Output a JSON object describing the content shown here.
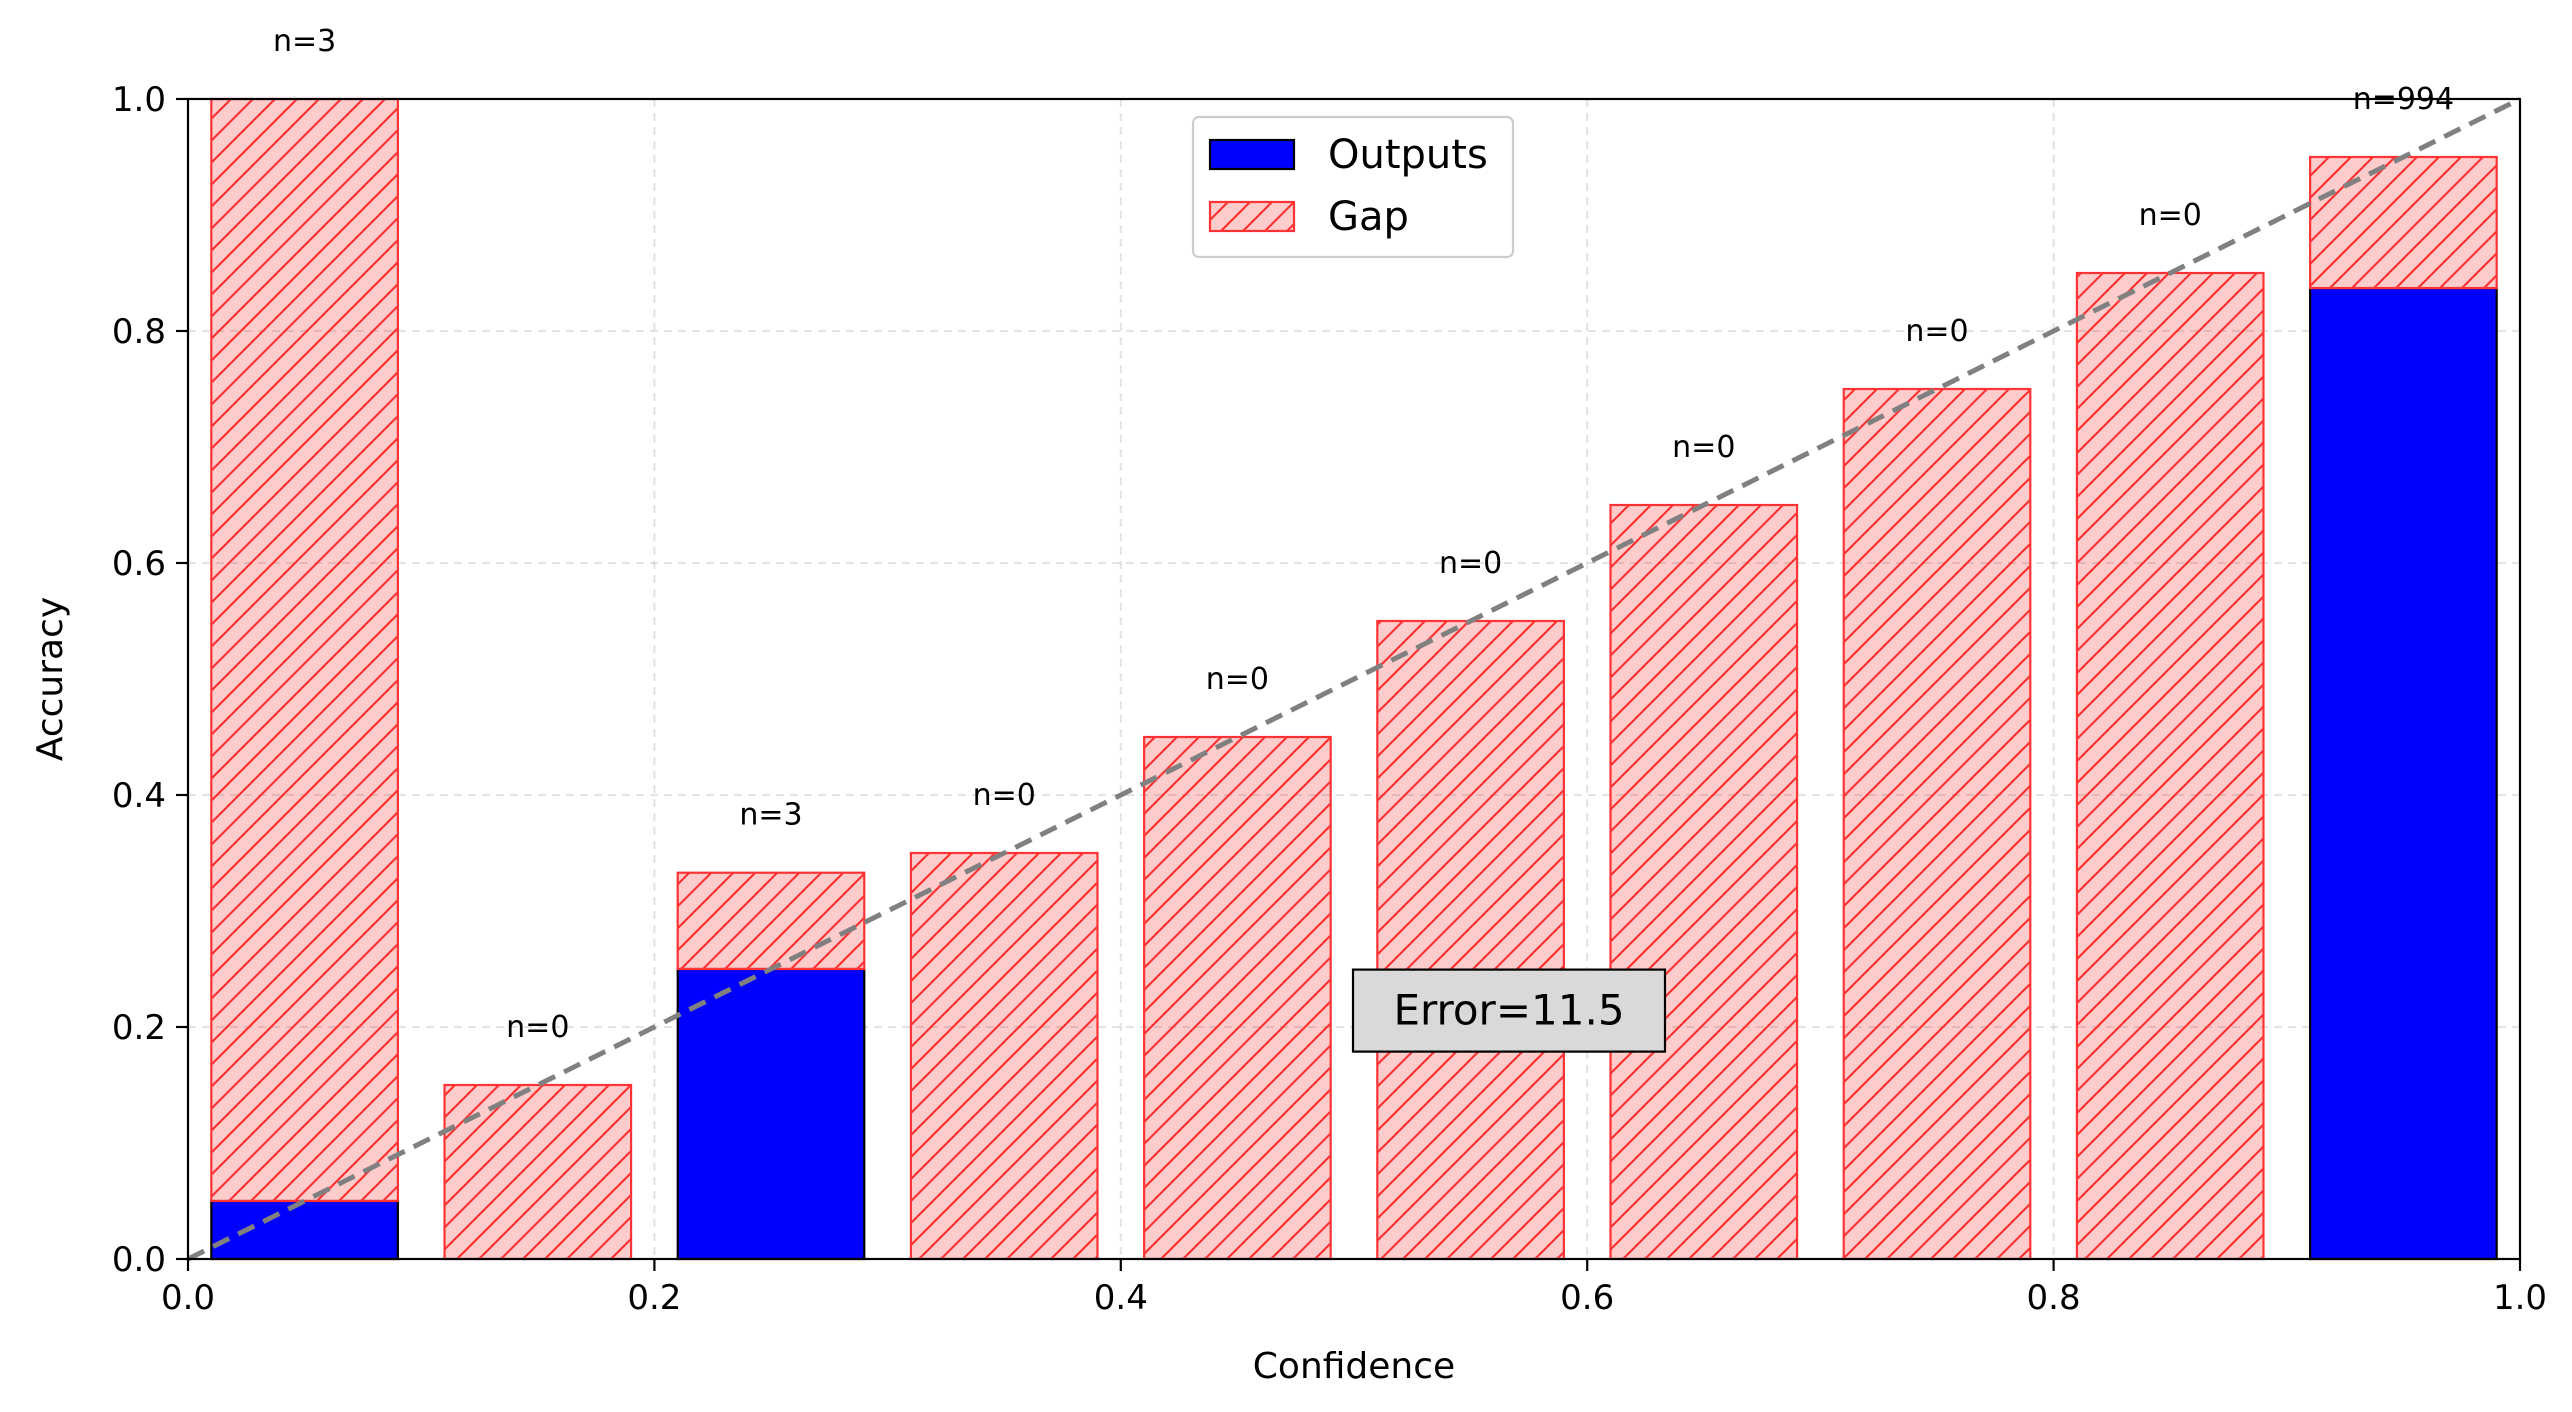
{
  "chart_data": {
    "type": "bar",
    "xlabel": "Confidence",
    "ylabel": "Accuracy",
    "xlim": [
      0.0,
      1.0
    ],
    "ylim": [
      0.0,
      1.0
    ],
    "xticks": [
      "0.0",
      "0.2",
      "0.4",
      "0.6",
      "0.8",
      "1.0"
    ],
    "yticks": [
      "0.0",
      "0.2",
      "0.4",
      "0.6",
      "0.8",
      "1.0"
    ],
    "grid": true,
    "legend_position": "top-center",
    "bin_centers": [
      0.05,
      0.15,
      0.25,
      0.35,
      0.45,
      0.55,
      0.65,
      0.75,
      0.85,
      0.95
    ],
    "series": [
      {
        "name": "Outputs",
        "color": "#0000ff",
        "values": [
          0.05,
          0,
          0.25,
          0,
          0,
          0,
          0,
          0,
          0,
          0.837
        ]
      },
      {
        "name": "Gap",
        "color": "#ff0000",
        "base": [
          0.05,
          0,
          0.25,
          0,
          0,
          0,
          0,
          0,
          0,
          0.837
        ],
        "top": [
          1.0,
          0.15,
          0.333,
          0.35,
          0.45,
          0.55,
          0.65,
          0.75,
          0.85,
          0.95
        ]
      }
    ],
    "counts": [
      "n=3",
      "n=0",
      "n=3",
      "n=0",
      "n=0",
      "n=0",
      "n=0",
      "n=0",
      "n=0",
      "n=994"
    ],
    "diagonal": {
      "style": "dashed",
      "color": "#808080"
    },
    "annotation": "Error=11.5"
  }
}
